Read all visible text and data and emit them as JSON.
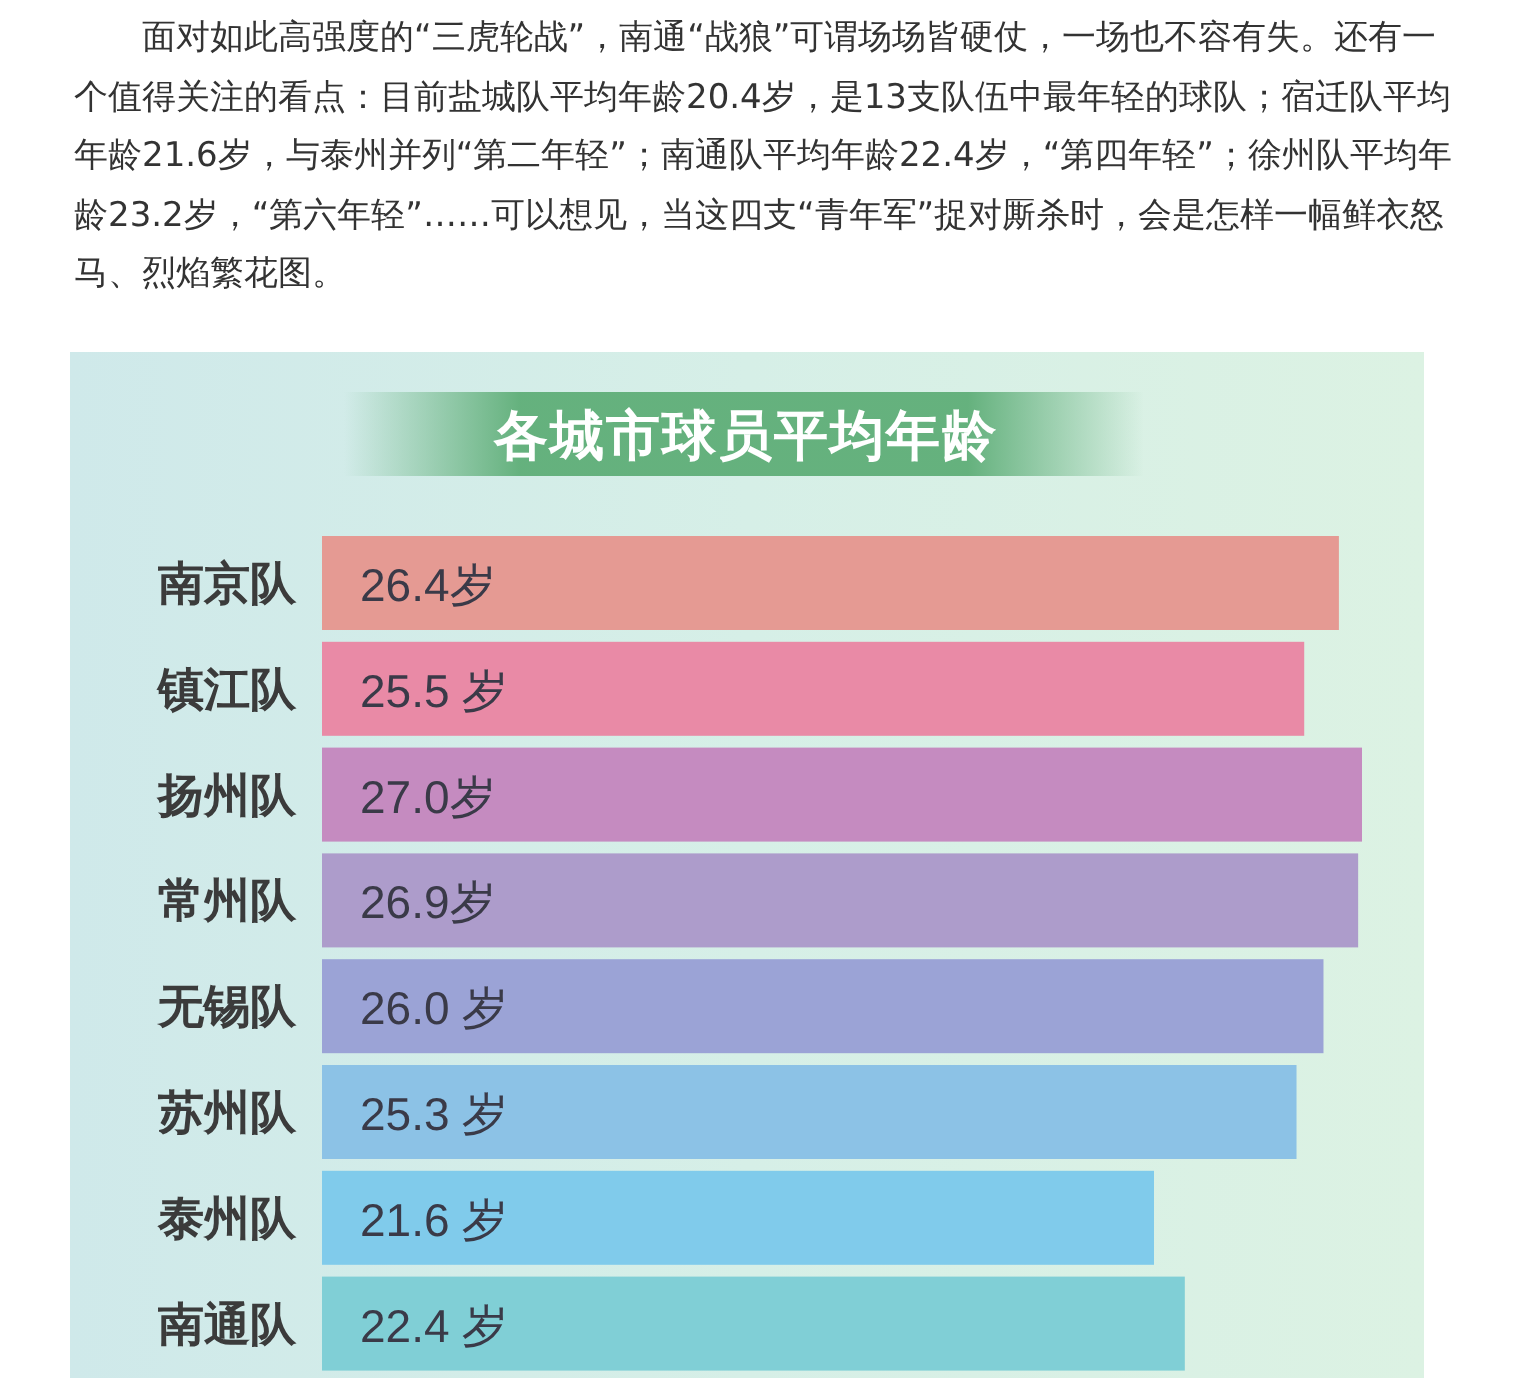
{
  "chart_data": {
    "type": "bar",
    "orientation": "horizontal",
    "title": "各城市球员平均年龄",
    "annotations": [
      "面对如此高强度的“三虎轮战”，南通“战狼”可谓场场皆硬仗，一场也不容有失。还有一个值得关注的看点：目前盐城队平均年龄20.4岁，是13支队伍中最年轻的球队；宿迁队平均年龄21.6岁，与泰州并列“第二年轻”；南通队平均年龄22.4岁，“第四年轻”；徐州队平均年龄23.2岁，“第六年轻”……可以想见，当这四支“青年军”捉对厮杀时，会是怎样一幅鲜衣怒马、烈焰繁花图。"
    ],
    "categories": [
      "南京队",
      "镇江队",
      "扬州队",
      "常州队",
      "无锡队",
      "苏州队",
      "泰州队",
      "南通队"
    ],
    "values": [
      26.4,
      25.5,
      27.0,
      26.9,
      26.0,
      25.3,
      21.6,
      22.4
    ],
    "colors": [
      "#e59a93",
      "#e98aa6",
      "#c58bc0",
      "#ad9ccb",
      "#9ba3d6",
      "#8cc2e6",
      "#80cbeb",
      "#80cfd6"
    ],
    "value_labels": [
      "26.4岁",
      "25.5 岁",
      "27.0岁",
      "26.9岁",
      "26.0 岁",
      "25.3 岁",
      "21.6 岁",
      "22.4 岁"
    ]
  }
}
